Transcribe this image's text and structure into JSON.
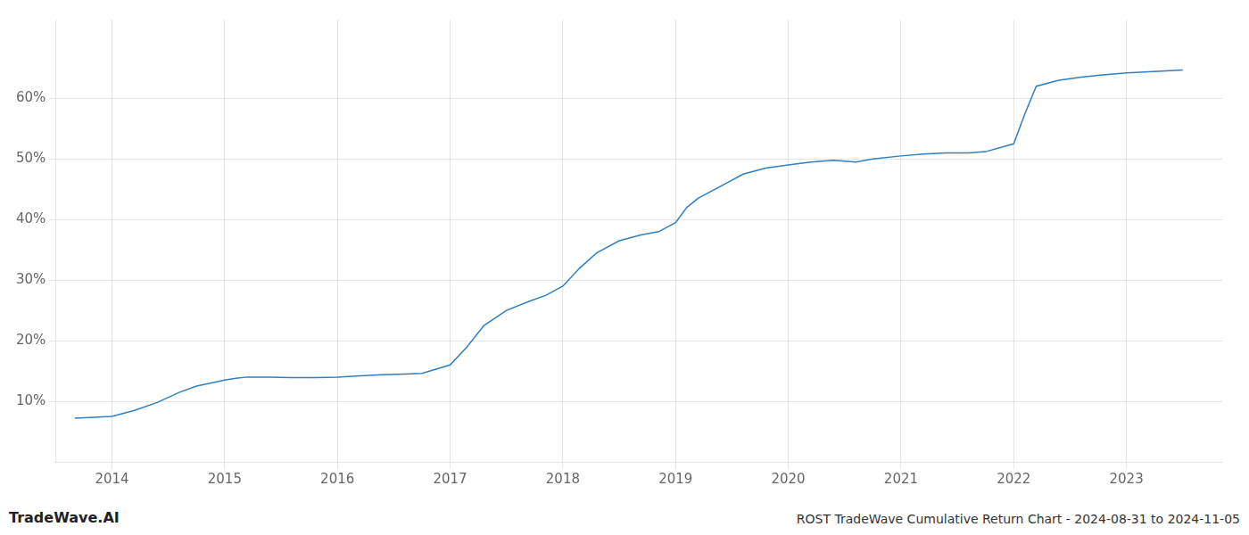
{
  "chart_data": {
    "type": "line",
    "title": "ROST TradeWave Cumulative Return Chart - 2024-08-31 to 2024-11-05",
    "annotations": [
      "TradeWave.AI"
    ],
    "color": "#2f7fc1",
    "grid": true,
    "x": [
      2013.67,
      2014.0,
      2014.2,
      2014.4,
      2014.6,
      2014.75,
      2015.0,
      2015.1,
      2015.2,
      2015.4,
      2015.6,
      2015.8,
      2016.0,
      2016.2,
      2016.4,
      2016.6,
      2016.75,
      2017.0,
      2017.15,
      2017.3,
      2017.5,
      2017.7,
      2017.85,
      2018.0,
      2018.15,
      2018.3,
      2018.5,
      2018.7,
      2018.85,
      2019.0,
      2019.1,
      2019.2,
      2019.4,
      2019.6,
      2019.8,
      2020.0,
      2020.2,
      2020.4,
      2020.6,
      2020.75,
      2021.0,
      2021.2,
      2021.4,
      2021.6,
      2021.75,
      2022.0,
      2022.1,
      2022.2,
      2022.4,
      2022.6,
      2022.75,
      2023.0,
      2023.2,
      2023.5
    ],
    "values": [
      7.2,
      7.5,
      8.5,
      9.8,
      11.5,
      12.5,
      13.5,
      13.8,
      14.0,
      14.0,
      13.9,
      13.9,
      14.0,
      14.2,
      14.4,
      14.5,
      14.6,
      16.0,
      19.0,
      22.5,
      25.0,
      26.5,
      27.5,
      29.0,
      32.0,
      34.5,
      36.5,
      37.5,
      38.0,
      39.5,
      42.0,
      43.5,
      45.5,
      47.5,
      48.5,
      49.0,
      49.5,
      49.8,
      49.5,
      50.0,
      50.5,
      50.8,
      51.0,
      51.0,
      51.2,
      52.5,
      57.5,
      62.0,
      63.0,
      63.5,
      63.8,
      64.2,
      64.4,
      64.7
    ],
    "xlim": [
      2013.5,
      2023.85
    ],
    "xticks": [
      2014,
      2015,
      2016,
      2017,
      2018,
      2019,
      2020,
      2021,
      2022,
      2023
    ],
    "ylim": [
      0,
      73
    ],
    "yticks": [
      {
        "value": 10,
        "label": "10%"
      },
      {
        "value": 20,
        "label": "20%"
      },
      {
        "value": 30,
        "label": "30%"
      },
      {
        "value": 40,
        "label": "40%"
      },
      {
        "value": 50,
        "label": "50%"
      },
      {
        "value": 60,
        "label": "60%"
      }
    ]
  }
}
